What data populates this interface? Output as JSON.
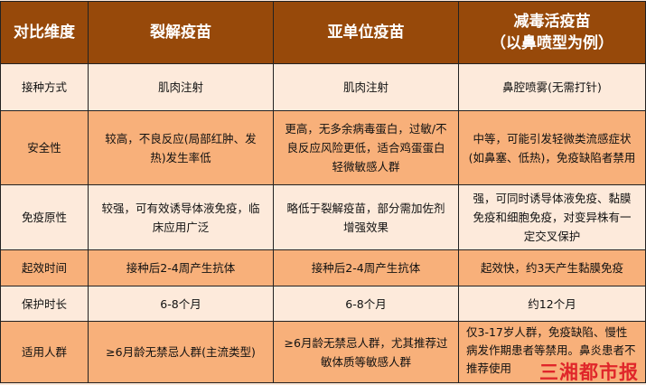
{
  "headers": [
    "对比维度",
    "裂解疫苗",
    "亚单位疫苗",
    "减毒活疫苗\n（以鼻喷型为例）"
  ],
  "header_lines": {
    "col4_line1": "减毒活疫苗",
    "col4_line2": "（以鼻喷型为例）"
  },
  "rows": [
    {
      "label": "接种方式",
      "cells": [
        "肌肉注射",
        "肌肉注射",
        "鼻腔喷雾(无需打针)"
      ]
    },
    {
      "label": "安全性",
      "cells": [
        "较高，不良反应(局部红肿、发热)发生率低",
        "更高，无多余病毒蛋白，过敏/不良反应风险更低，适合鸡蛋蛋白轻微敏感人群",
        "中等，可能引发轻微类流感症状(如鼻塞、低热)，免疫缺陷者禁用"
      ]
    },
    {
      "label": "免疫原性",
      "cells": [
        "较强，可有效诱导体液免疫，临床应用广泛",
        "略低于裂解疫苗，部分需加佐剂增强效果",
        "强，可同时诱导体液免疫、黏膜免疫和细胞免疫，对变异株有一定交叉保护"
      ]
    },
    {
      "label": "起效时间",
      "cells": [
        "接种后2-4周产生抗体",
        "接种后2-4周产生抗体",
        "起效快，约3天产生黏膜免疫"
      ]
    },
    {
      "label": "保护时长",
      "cells": [
        "6-8个月",
        "6-8个月",
        "约12个月"
      ]
    },
    {
      "label": "适用人群",
      "cells": [
        "≥6月龄无禁忌人群(主流类型)",
        "≥6月龄无禁忌人群，尤其推荐过敏体质等敏感人群",
        "仅3-17岁人群，免疫缺陷、慢性病发作期患者等禁用。鼻炎患者不推荐使用"
      ]
    }
  ],
  "watermark": "三湘都市报",
  "colors": {
    "header": "#97490a",
    "row_light": "#fdeadb",
    "row_dark": "#f8b07a",
    "watermark": "#e0262a"
  }
}
